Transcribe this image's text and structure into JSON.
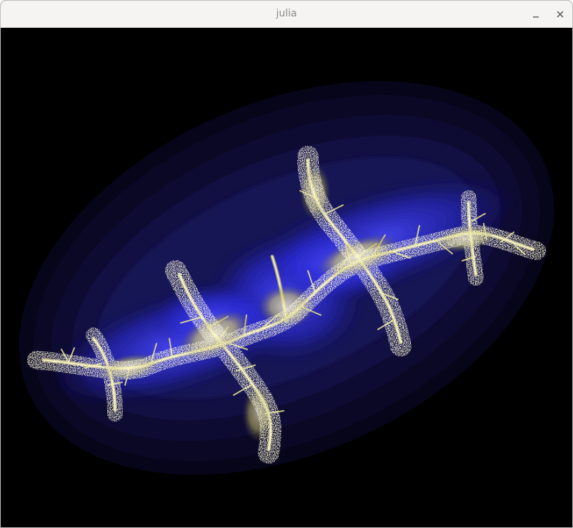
{
  "window": {
    "title": "julia"
  },
  "titlebar": {
    "minimize_icon": "minimize-icon",
    "close_icon": "close-icon"
  },
  "colors": {
    "titlebar_bg": "#f5f4f2",
    "title_text": "#8a8a8a",
    "canvas_bg": "#000000",
    "halo_outer": "#0b0826",
    "halo_mid": "#1a1660",
    "glow_blue": "#2b2bf0",
    "fractal_core": "#f3ef9a"
  }
}
